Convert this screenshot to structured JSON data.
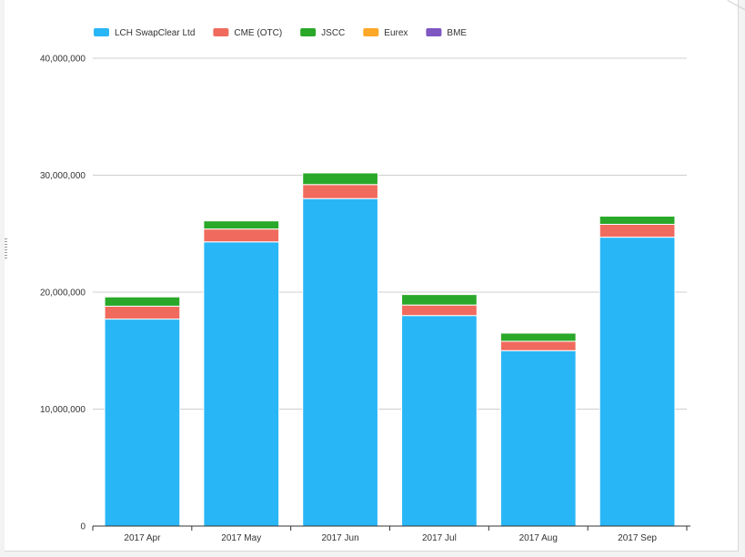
{
  "chart_data": {
    "type": "bar",
    "stacked": true,
    "title": "",
    "xlabel": "",
    "ylabel": "",
    "ylim": [
      0,
      40000000
    ],
    "yticks": [
      0,
      10000000,
      20000000,
      30000000,
      40000000
    ],
    "ytick_labels": [
      "0",
      "10,000,000",
      "20,000,000",
      "30,000,000",
      "40,000,000"
    ],
    "grid": true,
    "legend_position": "top-left",
    "categories": [
      "2017 Apr",
      "2017 May",
      "2017 Jun",
      "2017 Jul",
      "2017 Aug",
      "2017 Sep"
    ],
    "series": [
      {
        "name": "LCH SwapClear Ltd",
        "color": "#29b6f6",
        "values": [
          17700000,
          24300000,
          28000000,
          18000000,
          15000000,
          24700000
        ]
      },
      {
        "name": "CME (OTC)",
        "color": "#f06b5e",
        "values": [
          1100000,
          1100000,
          1200000,
          900000,
          800000,
          1100000
        ]
      },
      {
        "name": "JSCC",
        "color": "#2aa829",
        "values": [
          800000,
          700000,
          1000000,
          900000,
          700000,
          700000
        ]
      },
      {
        "name": "Eurex",
        "color": "#ffa726",
        "values": [
          100000,
          100000,
          100000,
          100000,
          100000,
          100000
        ]
      },
      {
        "name": "BME",
        "color": "#7e57c2",
        "values": [
          20000,
          20000,
          20000,
          20000,
          20000,
          20000
        ]
      }
    ]
  }
}
